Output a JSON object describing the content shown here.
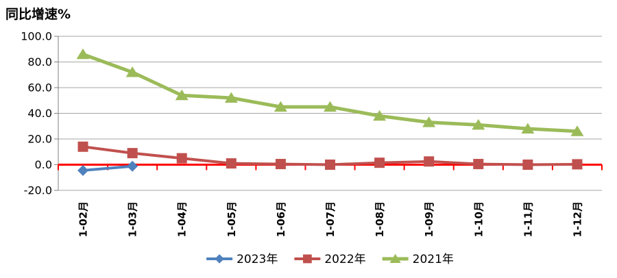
{
  "title": "同比增速%",
  "chart_data": {
    "type": "line",
    "title": "同比增速%",
    "categories": [
      "1-02月",
      "1-03月",
      "1-04月",
      "1-05月",
      "1-06月",
      "1-07月",
      "1-08月",
      "1-09月",
      "1-10月",
      "1-11月",
      "1-12月"
    ],
    "series": [
      {
        "name": "2023年",
        "color": "#4F81BD",
        "marker": "diamond",
        "values": [
          -4.5,
          -1.2,
          null,
          null,
          null,
          null,
          null,
          null,
          null,
          null,
          null
        ]
      },
      {
        "name": "2022年",
        "color": "#C0504D",
        "marker": "square",
        "values": [
          14,
          9,
          5,
          1,
          0.5,
          0,
          1.5,
          2.5,
          0.5,
          0,
          0.3
        ]
      },
      {
        "name": "2021年",
        "color": "#9BBB59",
        "marker": "triangle",
        "values": [
          86,
          72,
          54,
          52,
          45,
          45,
          38,
          33,
          31,
          28,
          26
        ]
      }
    ],
    "ylabel": "同比增速%",
    "xlabel": "",
    "ylim": [
      -20,
      100
    ],
    "ytick_step": 20,
    "ytick_labels": [
      "100.0",
      "80.0",
      "60.0",
      "40.0",
      "20.0",
      "0.0",
      "-20.0"
    ],
    "grid": true,
    "legend_position": "bottom",
    "colors": {
      "zero_line": "#FF0000",
      "gridline": "#A6A6A6",
      "axis": "#808080",
      "text": "#000000"
    }
  }
}
